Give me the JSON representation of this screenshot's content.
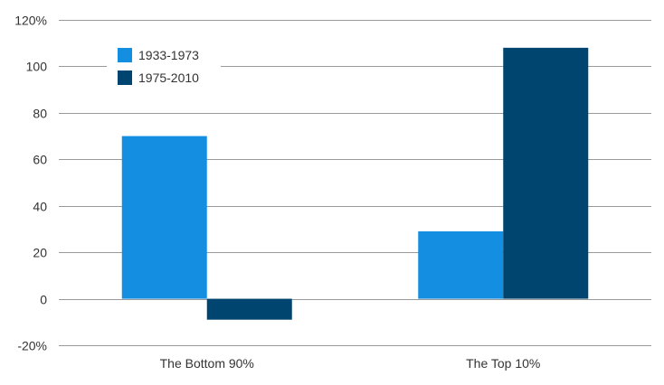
{
  "chart_data": {
    "type": "bar",
    "title": "",
    "xlabel": "",
    "ylabel": "",
    "categories": [
      "The Bottom 90%",
      "The Top 10%"
    ],
    "series": [
      {
        "name": "1933-1973",
        "color": "#138ee0",
        "values": [
          70,
          29
        ]
      },
      {
        "name": "1975-2010",
        "color": "#004570",
        "values": [
          -9,
          108
        ]
      }
    ],
    "ylim": [
      -20,
      120
    ],
    "yticks": [
      -20,
      0,
      20,
      40,
      60,
      80,
      100,
      120
    ],
    "ytick_labels": [
      "-20%",
      "0",
      "20",
      "40",
      "60",
      "80",
      "100",
      "120%"
    ],
    "grid": true,
    "legend_position": "top-left"
  }
}
